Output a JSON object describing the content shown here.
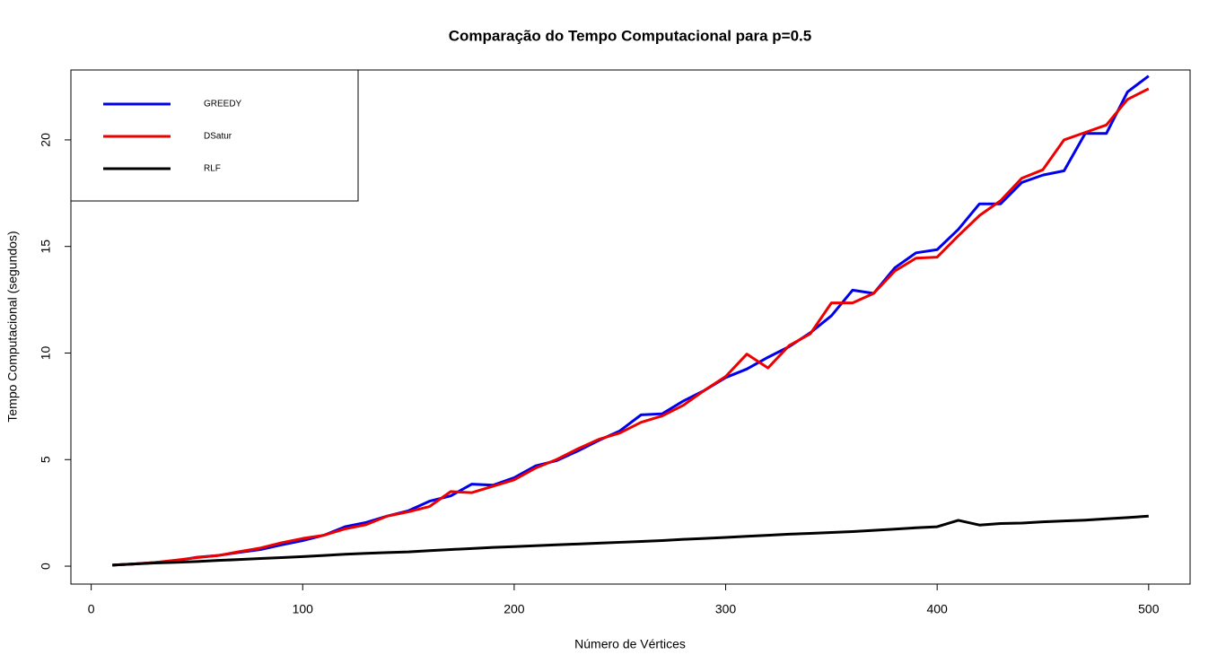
{
  "chart_data": {
    "type": "line",
    "title": "Comparação do Tempo Computacional para p=0.5",
    "x_label": "Número de Vértices",
    "y_label": "Tempo Computacional (segundos)",
    "x": [
      10,
      20,
      30,
      40,
      50,
      60,
      70,
      80,
      90,
      100,
      110,
      120,
      130,
      140,
      150,
      160,
      170,
      180,
      190,
      200,
      210,
      220,
      230,
      240,
      250,
      260,
      270,
      280,
      290,
      300,
      310,
      320,
      330,
      340,
      350,
      360,
      370,
      380,
      390,
      400,
      410,
      420,
      430,
      440,
      450,
      460,
      470,
      480,
      490,
      500
    ],
    "series": [
      {
        "name": "GREEDY",
        "color": "#0000ee",
        "values": [
          0.05,
          0.1,
          0.17,
          0.25,
          0.42,
          0.5,
          0.65,
          0.78,
          1.0,
          1.2,
          1.45,
          1.85,
          2.05,
          2.35,
          2.6,
          3.05,
          3.3,
          3.85,
          3.8,
          4.15,
          4.7,
          4.95,
          5.4,
          5.9,
          6.35,
          7.1,
          7.15,
          7.75,
          8.25,
          8.85,
          9.25,
          9.8,
          10.3,
          10.95,
          11.75,
          12.95,
          12.8,
          14.0,
          14.7,
          14.85,
          15.8,
          17.0,
          17.0,
          18.0,
          18.35,
          18.55,
          20.3,
          20.3,
          22.25,
          23.0
        ]
      },
      {
        "name": "DSatur",
        "color": "#ee0000",
        "values": [
          0.05,
          0.1,
          0.17,
          0.28,
          0.4,
          0.5,
          0.68,
          0.85,
          1.1,
          1.3,
          1.45,
          1.75,
          1.95,
          2.35,
          2.55,
          2.8,
          3.5,
          3.45,
          3.75,
          4.05,
          4.6,
          5.0,
          5.5,
          5.95,
          6.25,
          6.75,
          7.05,
          7.55,
          8.25,
          8.9,
          9.95,
          9.3,
          10.35,
          10.9,
          12.35,
          12.35,
          12.8,
          13.85,
          14.45,
          14.5,
          15.5,
          16.45,
          17.15,
          18.2,
          18.6,
          20.0,
          20.35,
          20.7,
          21.9,
          22.4
        ]
      },
      {
        "name": "RLF",
        "color": "#000000",
        "values": [
          0.05,
          0.1,
          0.15,
          0.18,
          0.22,
          0.27,
          0.31,
          0.36,
          0.4,
          0.45,
          0.5,
          0.56,
          0.6,
          0.64,
          0.67,
          0.73,
          0.78,
          0.83,
          0.88,
          0.92,
          0.96,
          1.0,
          1.04,
          1.08,
          1.12,
          1.16,
          1.2,
          1.26,
          1.3,
          1.35,
          1.4,
          1.45,
          1.5,
          1.54,
          1.58,
          1.62,
          1.68,
          1.74,
          1.8,
          1.85,
          2.15,
          1.93,
          2.0,
          2.02,
          2.08,
          2.12,
          2.16,
          2.22,
          2.28,
          2.35
        ]
      }
    ],
    "xlim": [
      -9.6,
      519.6
    ],
    "ylim": [
      -0.84,
      23.28
    ],
    "xticks": [
      0,
      100,
      200,
      300,
      400,
      500
    ],
    "yticks": [
      0,
      5,
      10,
      15,
      20
    ],
    "legend": "topleft",
    "grid": false
  }
}
